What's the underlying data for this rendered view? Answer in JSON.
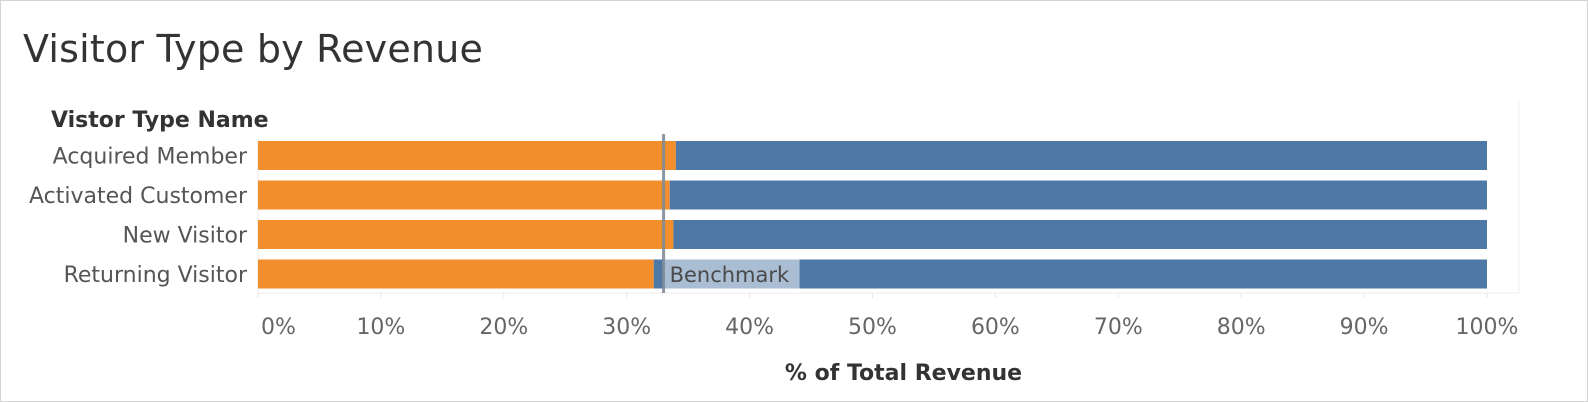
{
  "title": "Visitor Type by Revenue",
  "colors": {
    "primary": "#f28e2b",
    "remainder": "#4e79a7",
    "benchmark_line": "#7f8c99",
    "benchmark_label_bg": "#a9bdd3",
    "text": "#555555"
  },
  "chart_data": {
    "type": "bar",
    "orientation": "horizontal",
    "stacked": true,
    "row_header": "Vistor Type Name",
    "categories": [
      "Acquired Member",
      "Activated Customer",
      "New Visitor",
      "Returning Visitor"
    ],
    "series": [
      {
        "values": [
          34,
          33.5,
          33.8,
          32.2
        ]
      },
      {
        "values": [
          66,
          66.5,
          66.2,
          67.8
        ]
      }
    ],
    "xlabel": "% of Total Revenue",
    "xlim": [
      0,
      100
    ],
    "xticks": [
      0,
      10,
      20,
      30,
      40,
      50,
      60,
      70,
      80,
      90,
      100
    ],
    "xtick_labels": [
      "0%",
      "10%",
      "20%",
      "30%",
      "40%",
      "50%",
      "60%",
      "70%",
      "80%",
      "90%",
      "100%"
    ],
    "benchmark": {
      "value": 33,
      "label": "Benchmark"
    }
  }
}
